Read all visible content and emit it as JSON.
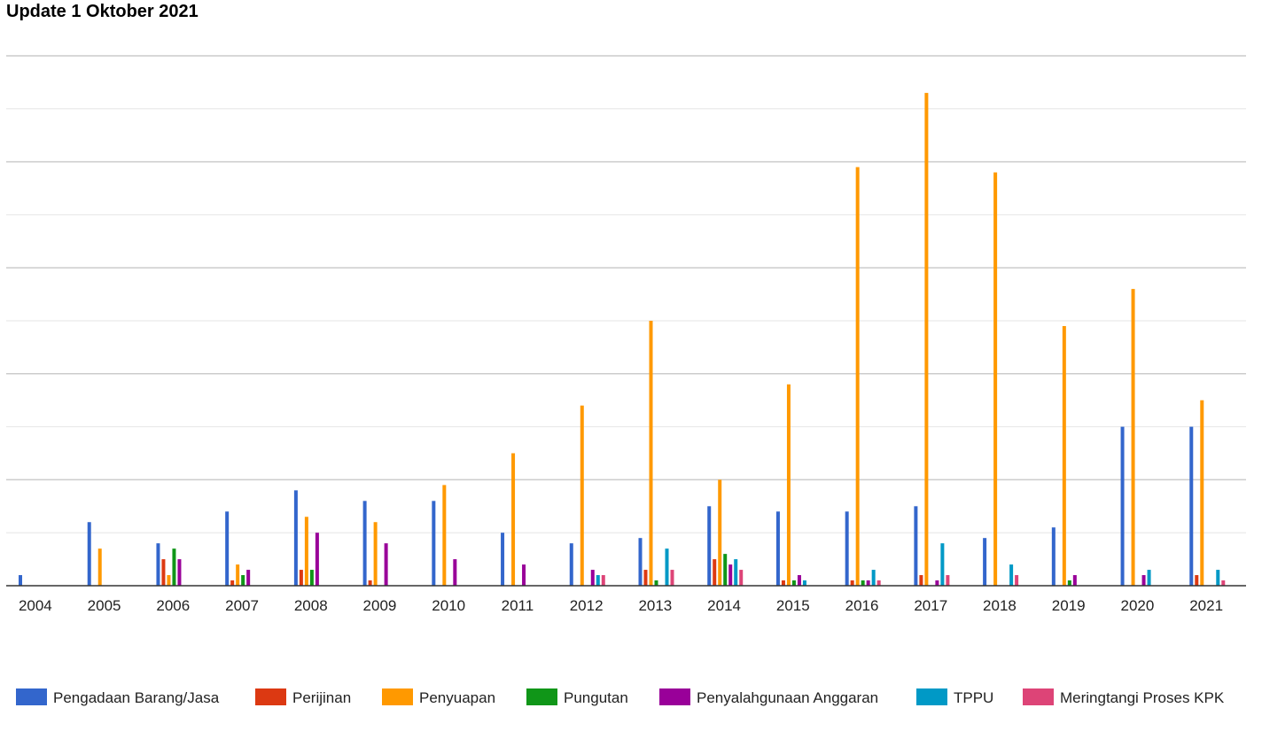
{
  "chart_data": {
    "type": "bar",
    "title": "Update 1 Oktober 2021",
    "xlabel": "",
    "ylabel": "",
    "ylim": [
      0,
      100
    ],
    "grid": true,
    "legend_position": "bottom",
    "categories": [
      "2004",
      "2005",
      "2006",
      "2007",
      "2008",
      "2009",
      "2010",
      "2011",
      "2012",
      "2013",
      "2014",
      "2015",
      "2016",
      "2017",
      "2018",
      "2019",
      "2020",
      "2021"
    ],
    "series": [
      {
        "name": "Pengadaan Barang/Jasa",
        "color": "#3366cc",
        "values": [
          2,
          12,
          8,
          14,
          18,
          16,
          16,
          10,
          8,
          9,
          15,
          14,
          14,
          15,
          9,
          11,
          30,
          30
        ]
      },
      {
        "name": "Perijinan",
        "color": "#dc3912",
        "values": [
          0,
          0,
          5,
          1,
          3,
          1,
          0,
          0,
          0,
          3,
          5,
          1,
          1,
          2,
          0,
          0,
          0,
          2
        ]
      },
      {
        "name": "Penyuapan",
        "color": "#ff9900",
        "values": [
          0,
          7,
          2,
          4,
          13,
          12,
          19,
          25,
          34,
          50,
          20,
          38,
          79,
          93,
          78,
          49,
          56,
          35
        ]
      },
      {
        "name": "Pungutan",
        "color": "#109618",
        "values": [
          0,
          0,
          7,
          2,
          3,
          0,
          0,
          0,
          0,
          1,
          6,
          1,
          1,
          0,
          0,
          1,
          0,
          0
        ]
      },
      {
        "name": "Penyalahgunaan Anggaran",
        "color": "#990099",
        "values": [
          0,
          0,
          5,
          3,
          10,
          8,
          5,
          4,
          3,
          0,
          4,
          2,
          1,
          1,
          0,
          2,
          2,
          0
        ]
      },
      {
        "name": "TPPU",
        "color": "#0099c6",
        "values": [
          0,
          0,
          0,
          0,
          0,
          0,
          0,
          0,
          2,
          7,
          5,
          1,
          3,
          8,
          4,
          0,
          3,
          3
        ]
      },
      {
        "name": "Meringtangi Proses KPK",
        "color": "#dd4477",
        "values": [
          0,
          0,
          0,
          0,
          0,
          0,
          0,
          0,
          2,
          3,
          3,
          0,
          1,
          2,
          2,
          0,
          0,
          1
        ]
      }
    ]
  }
}
